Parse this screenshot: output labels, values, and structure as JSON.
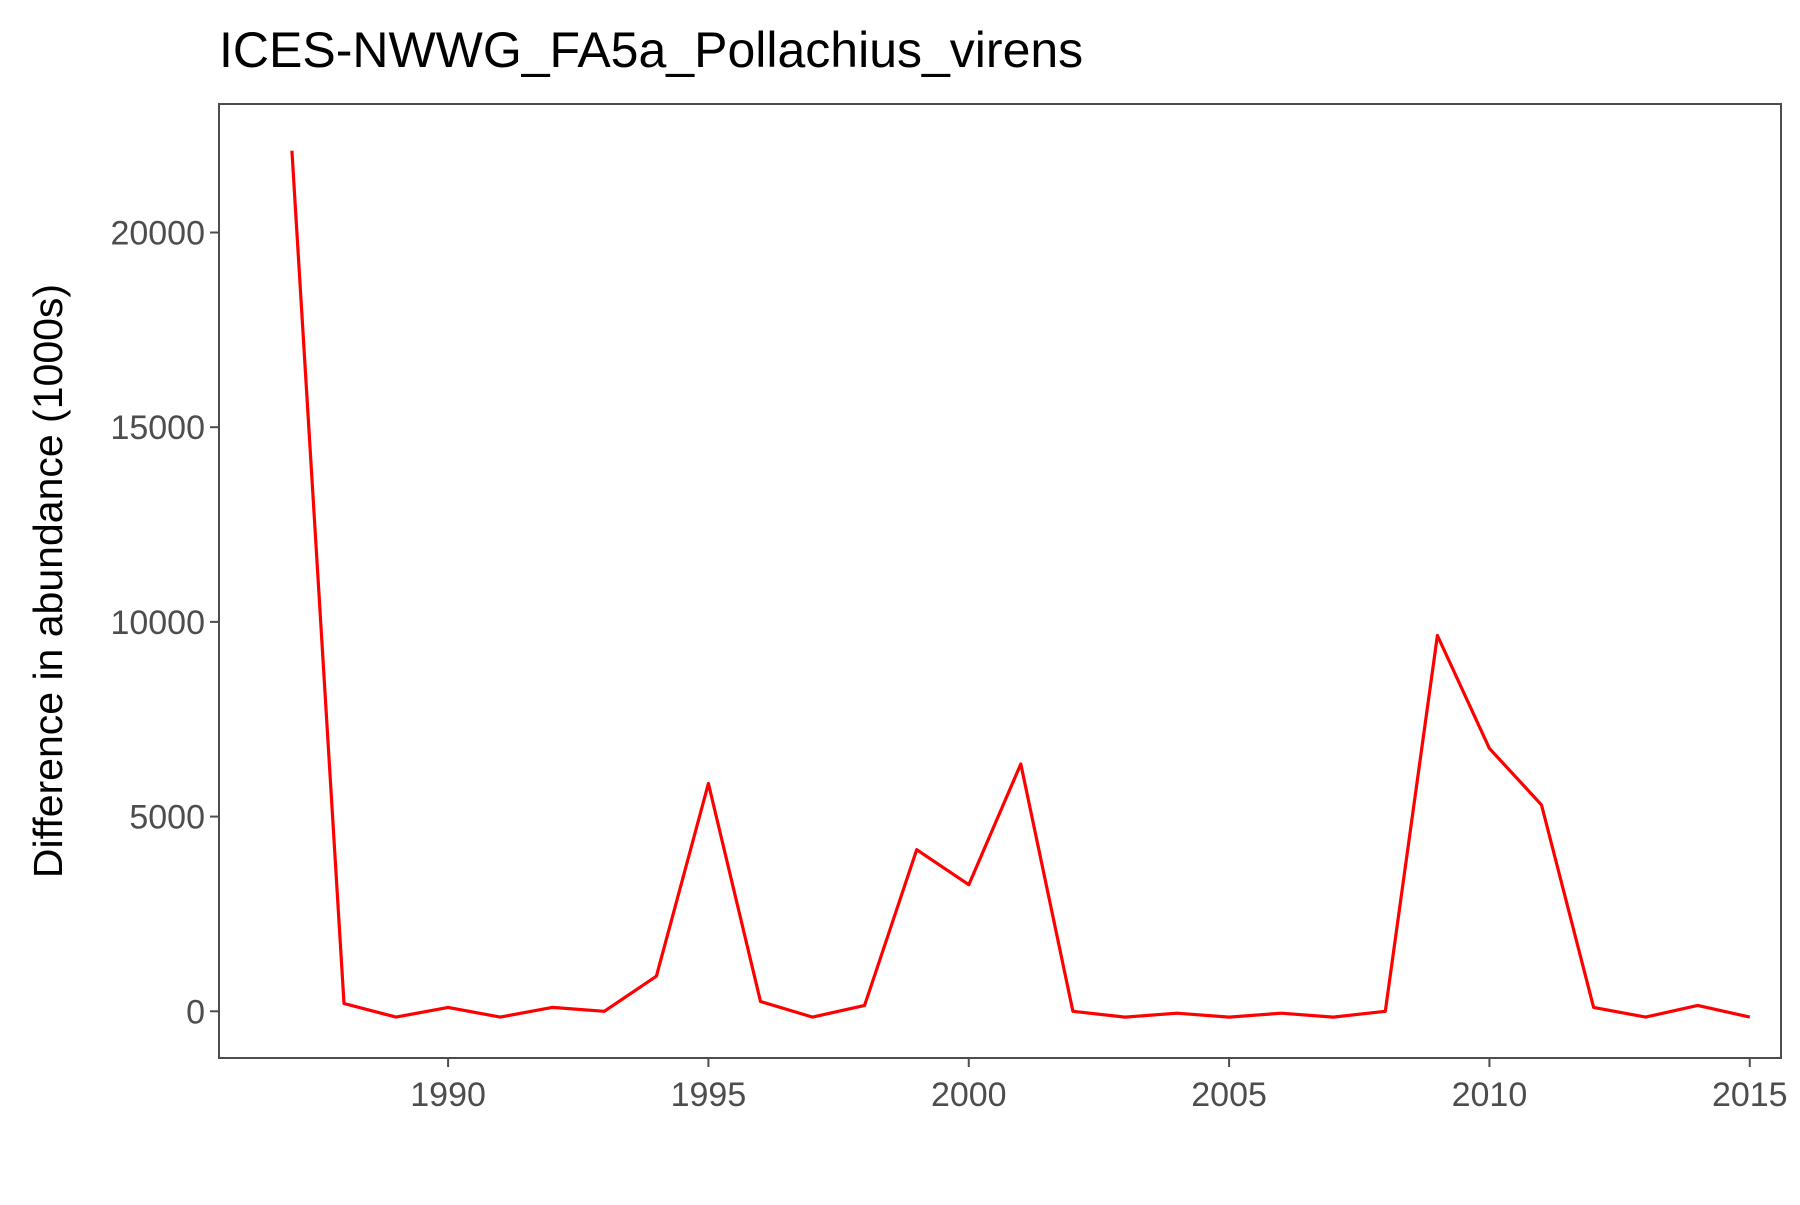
{
  "chart_data": {
    "type": "line",
    "title": "ICES-NWWG_FA5a_Pollachius_virens",
    "xlabel": "",
    "ylabel": "Difference in abundance (1000s)",
    "xlim": [
      1985.6,
      2015.6
    ],
    "ylim": [
      -1200,
      23300
    ],
    "x_ticks": [
      1990,
      1995,
      2000,
      2005,
      2010,
      2015
    ],
    "y_ticks": [
      0,
      5000,
      10000,
      15000,
      20000
    ],
    "grid": false,
    "legend": "none",
    "line_color": "#ff0000",
    "series": [
      {
        "x": [
          1987,
          1988,
          1989,
          1990,
          1991,
          1992,
          1993,
          1994,
          1995,
          1996,
          1997,
          1998,
          1999,
          2000,
          2001,
          2002,
          2003,
          2004,
          2005,
          2006,
          2007,
          2008,
          2009,
          2010,
          2011,
          2012,
          2013,
          2014,
          2015
        ],
        "values": [
          22100,
          200,
          -150,
          100,
          -150,
          100,
          0,
          900,
          5850,
          250,
          -150,
          150,
          4150,
          3250,
          6350,
          0,
          -150,
          -50,
          -150,
          -50,
          -150,
          0,
          9650,
          6750,
          5300,
          100,
          -150,
          150,
          -150
        ]
      }
    ]
  }
}
